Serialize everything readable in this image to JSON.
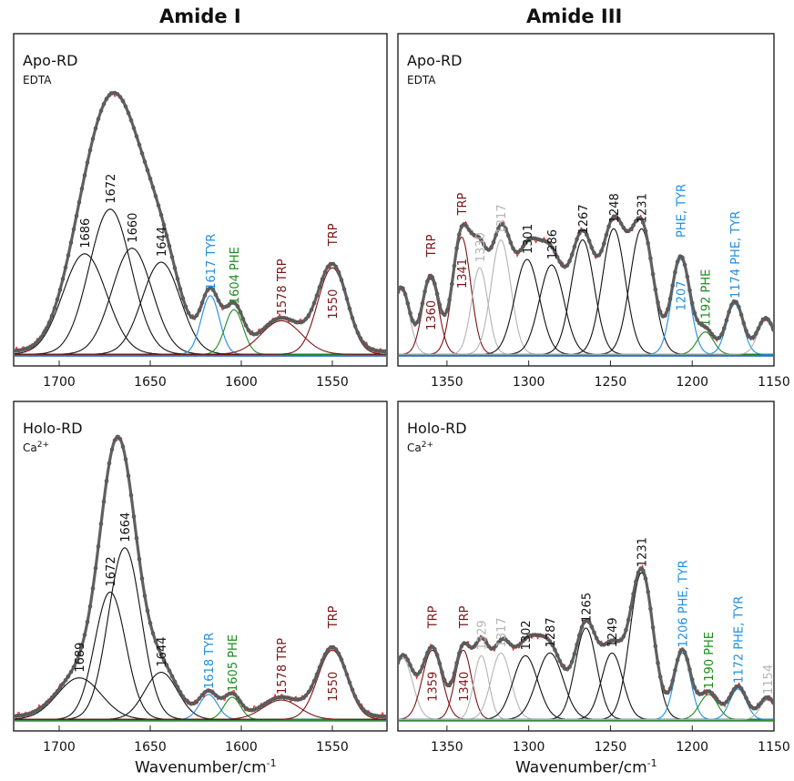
{
  "column_titles": [
    "Amide I",
    "Amide III"
  ],
  "xlabel": {
    "text": "Wavenumber/cm",
    "sup": "-1"
  },
  "colors": {
    "fit": "#606060",
    "marker": "#555555",
    "raw": "#ff1a1a",
    "black": "#111111",
    "gray": "#b4b4b4",
    "trp": "#7b1416",
    "blue": "#1f8ee0",
    "green": "#1c8b1c",
    "baseline_green": "#1a7a1a",
    "baseline_blue": "#3a78b8"
  },
  "chart_data": [
    {
      "id": "amide1-apo",
      "type": "line",
      "title": "Apo-RD",
      "subtitle": "EDTA",
      "xlim": [
        1725,
        1520
      ],
      "ylim": [
        0,
        1
      ],
      "xticks": [
        1700,
        1650,
        1600,
        1550
      ],
      "grid": false,
      "bands": [
        {
          "center": 1686,
          "amp": 0.36,
          "width": 12.0,
          "color": "black",
          "label": "1686"
        },
        {
          "center": 1672,
          "amp": 0.52,
          "width": 11.5,
          "color": "black",
          "label": "1672"
        },
        {
          "center": 1660,
          "amp": 0.38,
          "width": 11.0,
          "color": "black",
          "label": "1660"
        },
        {
          "center": 1644,
          "amp": 0.33,
          "width": 10.5,
          "color": "black",
          "label": "1644"
        },
        {
          "center": 1617,
          "amp": 0.21,
          "width": 5.0,
          "color": "blue",
          "label": "1617  TYR"
        },
        {
          "center": 1604,
          "amp": 0.16,
          "width": 5.0,
          "color": "green",
          "label": "1604  PHE"
        },
        {
          "center": 1578,
          "amp": 0.12,
          "width": 11.0,
          "color": "trp",
          "label": "1578  TRP"
        },
        {
          "center": 1550,
          "amp": 0.31,
          "width": 8.0,
          "color": "trp",
          "label": "TRP",
          "label2": "1550"
        }
      ]
    },
    {
      "id": "amide3-apo",
      "type": "line",
      "title": "Apo-RD",
      "subtitle": "EDTA",
      "xlim": [
        1380,
        1150
      ],
      "ylim": [
        0,
        1
      ],
      "xticks": [
        1350,
        1300,
        1250,
        1200,
        1150
      ],
      "grid": false,
      "bands": [
        {
          "center": 1378,
          "amp": 0.23,
          "width": 5.0,
          "color": "gray",
          "label": ""
        },
        {
          "center": 1360,
          "amp": 0.27,
          "width": 5.0,
          "color": "trp",
          "label": "TRP",
          "label2": "1360"
        },
        {
          "center": 1341,
          "amp": 0.42,
          "width": 5.5,
          "color": "trp",
          "label": "TRP",
          "label2": "1341"
        },
        {
          "center": 1330,
          "amp": 0.31,
          "width": 5.0,
          "color": "gray",
          "label": "1330"
        },
        {
          "center": 1317,
          "amp": 0.41,
          "width": 6.0,
          "color": "gray",
          "label": "1317"
        },
        {
          "center": 1301,
          "amp": 0.34,
          "width": 7.5,
          "color": "black",
          "label": "1301"
        },
        {
          "center": 1286,
          "amp": 0.32,
          "width": 7.5,
          "color": "black",
          "label": "1286"
        },
        {
          "center": 1267,
          "amp": 0.41,
          "width": 7.0,
          "color": "black",
          "label": "1267"
        },
        {
          "center": 1248,
          "amp": 0.45,
          "width": 7.0,
          "color": "black",
          "label": "1248"
        },
        {
          "center": 1231,
          "amp": 0.45,
          "width": 7.0,
          "color": "black",
          "label": "1231"
        },
        {
          "center": 1207,
          "amp": 0.34,
          "width": 5.5,
          "color": "blue",
          "label": "PHE, TYR",
          "label2": "1207"
        },
        {
          "center": 1192,
          "amp": 0.08,
          "width": 5.0,
          "color": "green",
          "label": "1192  PHE"
        },
        {
          "center": 1174,
          "amp": 0.18,
          "width": 5.0,
          "color": "blue",
          "label": "1174  PHE, TYR"
        },
        {
          "center": 1155,
          "amp": 0.12,
          "width": 5.0,
          "color": "gray",
          "label": ""
        }
      ]
    },
    {
      "id": "amide1-holo",
      "type": "line",
      "title": "Holo-RD",
      "subtitle": "Ca",
      "subtitle_sup": "2+",
      "xlim": [
        1725,
        1520
      ],
      "ylim": [
        0,
        1
      ],
      "xticks": [
        1700,
        1650,
        1600,
        1550
      ],
      "grid": false,
      "bands": [
        {
          "center": 1689,
          "amp": 0.15,
          "width": 12.0,
          "color": "black",
          "label": "1689"
        },
        {
          "center": 1672,
          "amp": 0.46,
          "width": 8.5,
          "color": "black",
          "label": "1672"
        },
        {
          "center": 1664,
          "amp": 0.62,
          "width": 9.0,
          "color": "black",
          "label": "1664"
        },
        {
          "center": 1644,
          "amp": 0.17,
          "width": 9.0,
          "color": "black",
          "label": "1644"
        },
        {
          "center": 1618,
          "amp": 0.09,
          "width": 5.0,
          "color": "blue",
          "label": "1618  TYR"
        },
        {
          "center": 1605,
          "amp": 0.08,
          "width": 4.5,
          "color": "green",
          "label": "1605  PHE"
        },
        {
          "center": 1578,
          "amp": 0.07,
          "width": 10.0,
          "color": "trp",
          "label": "1578  TRP"
        },
        {
          "center": 1550,
          "amp": 0.25,
          "width": 8.0,
          "color": "trp",
          "label": "TRP",
          "label2": "1550"
        }
      ]
    },
    {
      "id": "amide3-holo",
      "type": "line",
      "title": "Holo-RD",
      "subtitle": "Ca",
      "subtitle_sup": "2+",
      "xlim": [
        1380,
        1150
      ],
      "ylim": [
        0,
        1
      ],
      "xticks": [
        1350,
        1300,
        1250,
        1200,
        1150
      ],
      "grid": false,
      "bands": [
        {
          "center": 1377,
          "amp": 0.22,
          "width": 6.0,
          "color": "gray",
          "label": ""
        },
        {
          "center": 1359,
          "amp": 0.25,
          "width": 6.0,
          "color": "trp",
          "label": "TRP",
          "label2": "1359"
        },
        {
          "center": 1340,
          "amp": 0.25,
          "width": 5.0,
          "color": "trp",
          "label": "TRP",
          "label2": "1340"
        },
        {
          "center": 1329,
          "amp": 0.23,
          "width": 4.5,
          "color": "gray",
          "label": "1329"
        },
        {
          "center": 1317,
          "amp": 0.24,
          "width": 6.0,
          "color": "gray",
          "label": "1317"
        },
        {
          "center": 1302,
          "amp": 0.23,
          "width": 7.5,
          "color": "black",
          "label": "1302"
        },
        {
          "center": 1287,
          "amp": 0.24,
          "width": 8.0,
          "color": "black",
          "label": "1287"
        },
        {
          "center": 1265,
          "amp": 0.33,
          "width": 6.5,
          "color": "black",
          "label": "1265"
        },
        {
          "center": 1249,
          "amp": 0.24,
          "width": 6.5,
          "color": "black",
          "label": "1249"
        },
        {
          "center": 1231,
          "amp": 0.53,
          "width": 7.0,
          "color": "black",
          "label": "1231"
        },
        {
          "center": 1206,
          "amp": 0.24,
          "width": 5.0,
          "color": "blue",
          "label": "1206  PHE, TYR"
        },
        {
          "center": 1190,
          "amp": 0.09,
          "width": 5.5,
          "color": "green",
          "label": "1190  PHE"
        },
        {
          "center": 1172,
          "amp": 0.11,
          "width": 5.0,
          "color": "blue",
          "label": "1172  PHE, TYR"
        },
        {
          "center": 1154,
          "amp": 0.07,
          "width": 4.5,
          "color": "gray",
          "label": "1154"
        }
      ]
    }
  ]
}
